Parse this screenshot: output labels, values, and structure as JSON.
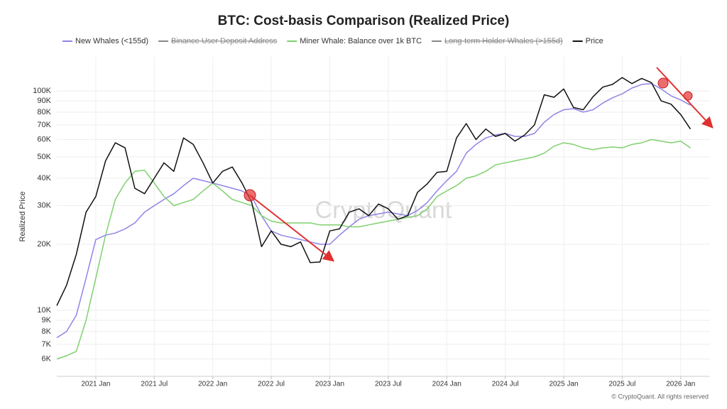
{
  "chart_data": {
    "type": "line",
    "title": "BTC: Cost-basis Comparison (Realized Price)",
    "y_label": "Realized Price",
    "watermark": "CryptoQuant",
    "footer": "© CryptoQuant. All rights reserved",
    "log_y": true,
    "grid": true,
    "legend": "top",
    "x": [
      "2020-09",
      "2020-10",
      "2020-11",
      "2020-12",
      "2021-01",
      "2021-02",
      "2021-03",
      "2021-04",
      "2021-05",
      "2021-06",
      "2021-07",
      "2021-08",
      "2021-09",
      "2021-10",
      "2021-11",
      "2021-12",
      "2022-01",
      "2022-02",
      "2022-03",
      "2022-04",
      "2022-05",
      "2022-06",
      "2022-07",
      "2022-08",
      "2022-09",
      "2022-10",
      "2022-11",
      "2022-12",
      "2023-01",
      "2023-02",
      "2023-03",
      "2023-04",
      "2023-05",
      "2023-06",
      "2023-07",
      "2023-08",
      "2023-09",
      "2023-10",
      "2023-11",
      "2023-12",
      "2024-01",
      "2024-02",
      "2024-03",
      "2024-04",
      "2024-05",
      "2024-06",
      "2024-07",
      "2024-08",
      "2024-09",
      "2024-10",
      "2024-11",
      "2024-12",
      "2025-01",
      "2025-02",
      "2025-03",
      "2025-04",
      "2025-05",
      "2025-06",
      "2025-07",
      "2025-08",
      "2025-09",
      "2025-10",
      "2025-11",
      "2025-12",
      "2026-01",
      "2026-02"
    ],
    "xlim": [
      "2020-09",
      "2026-04"
    ],
    "xticks": [
      {
        "value": "2021-01",
        "label": "2021 Jan"
      },
      {
        "value": "2021-07",
        "label": "2021 Jul"
      },
      {
        "value": "2022-01",
        "label": "2022 Jan"
      },
      {
        "value": "2022-07",
        "label": "2022 Jul"
      },
      {
        "value": "2023-01",
        "label": "2023 Jan"
      },
      {
        "value": "2023-07",
        "label": "2023 Jul"
      },
      {
        "value": "2024-01",
        "label": "2024 Jan"
      },
      {
        "value": "2024-07",
        "label": "2024 Jul"
      },
      {
        "value": "2025-01",
        "label": "2025 Jan"
      },
      {
        "value": "2025-07",
        "label": "2025 Jul"
      },
      {
        "value": "2026-01",
        "label": "2026 Jan"
      }
    ],
    "ylim": [
      5000,
      143000
    ],
    "yticks": [
      {
        "value": 6000,
        "label": "6K"
      },
      {
        "value": 7000,
        "label": "7K"
      },
      {
        "value": 8000,
        "label": "8K"
      },
      {
        "value": 9000,
        "label": "9K"
      },
      {
        "value": 10000,
        "label": "10K"
      },
      {
        "value": 20000,
        "label": "20K"
      },
      {
        "value": 30000,
        "label": "30K"
      },
      {
        "value": 40000,
        "label": "40K"
      },
      {
        "value": 50000,
        "label": "50K"
      },
      {
        "value": 60000,
        "label": "60K"
      },
      {
        "value": 70000,
        "label": "70K"
      },
      {
        "value": 80000,
        "label": "80K"
      },
      {
        "value": 90000,
        "label": "90K"
      },
      {
        "value": 100000,
        "label": "100K"
      }
    ],
    "series": [
      {
        "name": "New Whales (<155d)",
        "color": "#8f84e6",
        "values": [
          7500,
          8000,
          9500,
          14000,
          21000,
          22000,
          22500,
          23500,
          25000,
          28000,
          30000,
          32000,
          34000,
          37000,
          40000,
          39000,
          38000,
          37000,
          36000,
          35000,
          33000,
          27000,
          23000,
          22000,
          21500,
          21000,
          20500,
          20000,
          20000,
          22000,
          24000,
          26000,
          27000,
          27500,
          28000,
          27500,
          27000,
          28500,
          31000,
          35000,
          39000,
          43000,
          52000,
          57000,
          61000,
          63000,
          64000,
          62000,
          62000,
          64000,
          72000,
          78000,
          82000,
          83000,
          80000,
          82000,
          88000,
          93000,
          97000,
          103000,
          107000,
          108000,
          102000,
          95000,
          91000,
          86000
        ]
      },
      {
        "name": "Binance User Deposit Address",
        "color": "#888888",
        "hidden": true
      },
      {
        "name": "Miner Whale: Balance over 1k BTC",
        "color": "#7fd06e",
        "values": [
          6000,
          6200,
          6500,
          9000,
          14000,
          22000,
          32000,
          38000,
          43000,
          43500,
          38000,
          33000,
          30000,
          31000,
          32000,
          35000,
          38000,
          35000,
          32000,
          31000,
          30000,
          27000,
          25500,
          25000,
          25000,
          25000,
          25000,
          24500,
          24500,
          24500,
          24000,
          24000,
          24500,
          25000,
          25500,
          26000,
          26500,
          27000,
          29000,
          33000,
          35000,
          37000,
          40000,
          41000,
          43000,
          46000,
          47000,
          48000,
          49000,
          50000,
          52000,
          56000,
          58000,
          57000,
          55000,
          54000,
          55000,
          55500,
          55000,
          57000,
          58000,
          60000,
          59000,
          58000,
          59000,
          55000
        ]
      },
      {
        "name": "Long-term Holder Whales (>155d)",
        "color": "#888888",
        "hidden": true
      },
      {
        "name": "Price",
        "color": "#111111",
        "values": [
          10500,
          13000,
          18000,
          28000,
          33000,
          48000,
          58000,
          55000,
          36000,
          34000,
          40000,
          47000,
          43000,
          61000,
          57000,
          47000,
          38000,
          43000,
          45000,
          38000,
          31000,
          19500,
          23000,
          20000,
          19500,
          20500,
          16500,
          16600,
          23000,
          23500,
          28000,
          29000,
          27000,
          30500,
          29000,
          26000,
          27000,
          34500,
          37700,
          42500,
          43000,
          61000,
          71000,
          60000,
          67000,
          62000,
          64000,
          59000,
          63000,
          70000,
          96000,
          93500,
          102000,
          84000,
          82000,
          94000,
          104000,
          107000,
          115000,
          108000,
          114000,
          109000,
          90000,
          87000,
          78000,
          67000
        ]
      }
    ]
  }
}
